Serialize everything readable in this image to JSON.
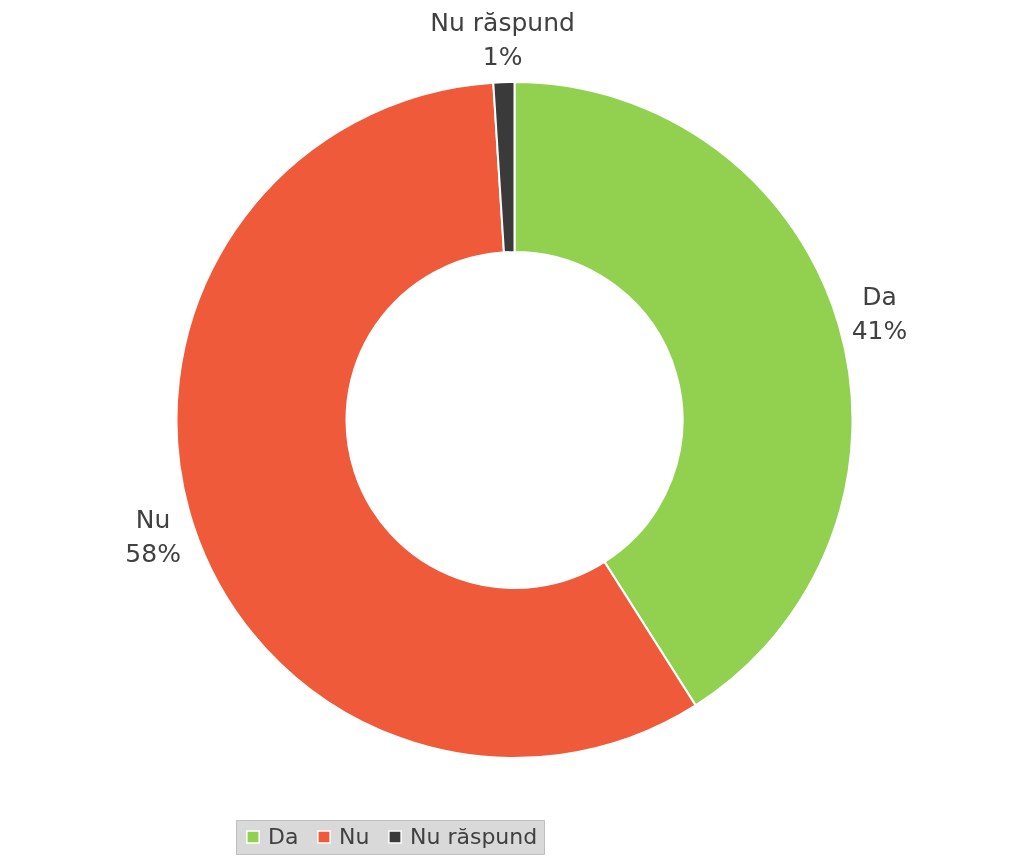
{
  "chart_data": {
    "type": "donut",
    "categories": [
      "Da",
      "Nu",
      "Nu răspund"
    ],
    "values": [
      41,
      58,
      1
    ],
    "colors": [
      "#92d050",
      "#ef5a3a",
      "#3a3a3a"
    ],
    "value_labels": [
      "41%",
      "58%",
      "1%"
    ],
    "legend": "bottom"
  }
}
